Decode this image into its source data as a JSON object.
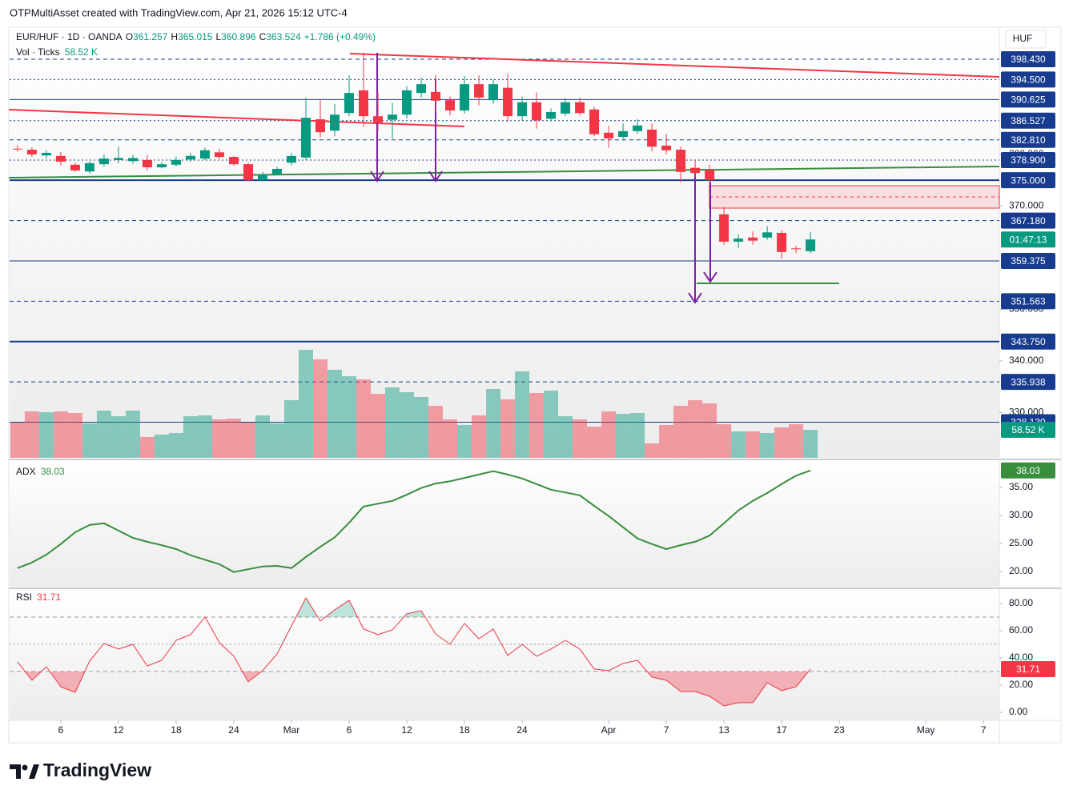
{
  "header": {
    "credit": "OTPMultiAsset created with TradingView.com, Apr 21, 2026 15:12 UTC-4"
  },
  "footer": {
    "brand": "TradingView"
  },
  "chart_data": [
    {
      "type": "candlestick",
      "symbol": "EUR/HUF · 1D · OANDA",
      "ohlc_prefixes": [
        "O",
        "H",
        "L",
        "C"
      ],
      "change_label": "+1.786 (+0.49%)",
      "currency": "HUF",
      "countdown": "01:47:13",
      "up_color": "#089981",
      "down_color": "#f23645",
      "level_color": "#173c8f",
      "open": [
        381.1,
        380.9,
        379.8,
        379.7,
        378.0,
        376.7,
        378.1,
        378.9,
        378.7,
        378.9,
        377.5,
        378.0,
        379.0,
        379.2,
        380.4,
        379.5,
        378.1,
        375.0,
        376.2,
        378.4,
        379.4,
        386.8,
        384.6,
        388.0,
        392.4,
        387.4,
        386.7,
        387.7,
        391.9,
        392.1,
        390.5,
        388.5,
        393.6,
        390.5,
        392.9,
        387.4,
        390.1,
        386.9,
        387.9,
        390.1,
        388.7,
        384.2,
        383.4,
        384.5,
        384.8,
        381.7,
        380.9,
        377.4,
        377.0,
        368.4,
        363.1,
        363.9,
        363.9,
        364.8,
        361.8,
        361.257
      ],
      "high": [
        381.8,
        381.4,
        380.8,
        380.5,
        378.4,
        378.7,
        380.0,
        381.5,
        379.9,
        379.9,
        378.5,
        379.6,
        380.3,
        381.3,
        381.1,
        379.7,
        378.4,
        376.6,
        377.6,
        380.3,
        391.0,
        390.5,
        389.8,
        395.3,
        399.7,
        392.0,
        390.0,
        393.2,
        394.9,
        395.4,
        391.2,
        395.2,
        395.3,
        394.5,
        395.7,
        391.2,
        392.0,
        388.9,
        390.9,
        391.0,
        389.2,
        385.5,
        386.0,
        386.8,
        386.0,
        384.0,
        381.5,
        378.9,
        378.0,
        369.8,
        364.5,
        365.1,
        366.1,
        365.3,
        362.3,
        365.015
      ],
      "low": [
        380.5,
        379.5,
        379.2,
        377.9,
        376.6,
        376.3,
        377.6,
        378.3,
        378.2,
        376.9,
        377.3,
        377.6,
        378.6,
        378.9,
        379.1,
        377.8,
        374.8,
        374.8,
        375.9,
        377.9,
        378.9,
        383.3,
        383.5,
        387.4,
        385.3,
        384.5,
        383.0,
        386.9,
        391.0,
        388.2,
        387.6,
        387.9,
        389.5,
        389.8,
        386.3,
        386.5,
        385.0,
        386.4,
        387.4,
        387.5,
        383.5,
        381.3,
        382.7,
        384.0,
        380.6,
        380.0,
        374.6,
        375.6,
        374.0,
        362.5,
        361.9,
        362.5,
        363.5,
        359.8,
        360.9,
        360.896
      ],
      "close": [
        381.0,
        380.0,
        380.3,
        378.6,
        376.9,
        378.3,
        379.2,
        379.3,
        379.3,
        377.5,
        378.1,
        378.9,
        379.7,
        380.8,
        379.5,
        378.1,
        375.0,
        376.1,
        377.2,
        379.7,
        387.1,
        384.3,
        387.7,
        391.9,
        387.4,
        386.2,
        387.7,
        392.4,
        393.6,
        390.4,
        388.5,
        393.6,
        391.0,
        393.6,
        387.4,
        390.1,
        386.6,
        388.2,
        390.1,
        388.0,
        383.9,
        383.1,
        384.5,
        385.6,
        381.5,
        380.8,
        376.6,
        376.4,
        375.0,
        363.1,
        363.7,
        363.3,
        364.9,
        361.1,
        361.738,
        363.524
      ],
      "volume": {
        "name": "Vol · Ticks",
        "values": [
          73.6,
          97.0,
          95.3,
          97.0,
          93.6,
          71.9,
          98.6,
          86.9,
          98.6,
          43.5,
          48.5,
          51.8,
          86.9,
          88.6,
          80.3,
          81.9,
          73.6,
          88.6,
          71.9,
          120.4,
          225.7,
          205.7,
          183.9,
          170.5,
          163.9,
          133.8,
          147.1,
          137.1,
          127.1,
          108.7,
          80.3,
          68.6,
          88.6,
          143.8,
          122.1,
          180.6,
          135.4,
          140.4,
          86.9,
          80.3,
          65.2,
          97.0,
          92.0,
          93.6,
          30.1,
          68.6,
          108.7,
          120.4,
          113.7,
          70.2,
          55.2,
          55.2,
          51.8,
          63.5,
          70.2,
          58.52
        ],
        "last_label": "58.52 K"
      },
      "ylim": [
        321.24,
        403.7
      ],
      "yticks": [
        {
          "value": 380,
          "label": "380.000"
        },
        {
          "value": 370,
          "label": "370.000"
        },
        {
          "value": 350,
          "label": "350.000"
        },
        {
          "value": 340,
          "label": "340.000"
        },
        {
          "value": 330,
          "label": "330.000"
        }
      ],
      "levels": [
        {
          "value": 398.43,
          "label": "398.430",
          "style": "dashed"
        },
        {
          "value": 394.5,
          "label": "394.500",
          "style": "dotted"
        },
        {
          "value": 390.625,
          "label": "390.625",
          "style": "solid"
        },
        {
          "value": 386.527,
          "label": "386.527",
          "style": "dotted"
        },
        {
          "value": 382.81,
          "label": "382.810",
          "style": "dashed"
        },
        {
          "value": 378.9,
          "label": "378.900",
          "style": "dotted"
        },
        {
          "value": 375,
          "label": "375.000",
          "style": "thick"
        },
        {
          "value": 367.18,
          "label": "367.180",
          "style": "dashed"
        },
        {
          "value": 359.375,
          "label": "359.375",
          "style": "solid"
        },
        {
          "value": 351.563,
          "label": "351.563",
          "style": "dashed"
        },
        {
          "value": 343.75,
          "label": "343.750",
          "style": "thick"
        },
        {
          "value": 335.938,
          "label": "335.938",
          "style": "dashed"
        },
        {
          "value": 328.13,
          "label": "328.130",
          "style": "solid"
        }
      ],
      "xlim": [
        -0.55,
        68.1
      ],
      "xticks": [
        {
          "value": 3,
          "label": "6"
        },
        {
          "value": 7,
          "label": "12"
        },
        {
          "value": 11,
          "label": "18"
        },
        {
          "value": 15,
          "label": "24"
        },
        {
          "value": 19,
          "label": "Mar"
        },
        {
          "value": 23,
          "label": "6"
        },
        {
          "value": 27,
          "label": "12"
        },
        {
          "value": 31,
          "label": "18"
        },
        {
          "value": 35,
          "label": "24"
        },
        {
          "value": 41,
          "label": "Apr"
        },
        {
          "value": 45,
          "label": "7"
        },
        {
          "value": 49,
          "label": "13"
        },
        {
          "value": 53,
          "label": "17"
        },
        {
          "value": 57,
          "label": "23"
        },
        {
          "value": 63,
          "label": "May"
        },
        {
          "value": 67,
          "label": "7"
        }
      ]
    },
    {
      "type": "line",
      "name": "ADX",
      "color": "#388e3c",
      "values": [
        20.6,
        21.6,
        23.0,
        24.9,
        27.0,
        28.3,
        28.6,
        27.3,
        26.0,
        25.3,
        24.7,
        24.0,
        22.9,
        22.1,
        21.3,
        19.9,
        20.4,
        20.9,
        21.0,
        20.6,
        22.6,
        24.4,
        26.1,
        28.7,
        31.6,
        32.1,
        32.6,
        33.7,
        34.9,
        35.7,
        36.1,
        36.7,
        37.3,
        37.9,
        37.3,
        36.6,
        35.6,
        34.6,
        34.1,
        33.6,
        31.7,
        29.9,
        27.9,
        25.9,
        24.9,
        24.0,
        24.7,
        25.3,
        26.4,
        28.6,
        30.9,
        32.6,
        34.0,
        35.6,
        37.1,
        38.03
      ],
      "ylim": [
        17.71,
        39.43
      ],
      "yticks": [
        {
          "value": 35,
          "label": "35.00"
        },
        {
          "value": 30,
          "label": "30.00"
        },
        {
          "value": 25,
          "label": "25.00"
        },
        {
          "value": 20,
          "label": "20.00"
        }
      ]
    },
    {
      "type": "line",
      "name": "RSI",
      "color": "#f23645",
      "values": [
        37.1,
        23.5,
        33.5,
        18.8,
        14.7,
        37.6,
        50.6,
        46.5,
        50.0,
        34.1,
        38.2,
        52.9,
        57.1,
        70.0,
        51.2,
        41.2,
        22.4,
        30.6,
        42.9,
        63.5,
        84.1,
        67.1,
        75.3,
        82.4,
        61.2,
        57.1,
        60.6,
        72.4,
        74.7,
        57.6,
        50.0,
        65.3,
        54.1,
        61.2,
        41.8,
        50.0,
        41.2,
        46.5,
        52.9,
        46.5,
        31.8,
        30.6,
        35.9,
        38.2,
        25.9,
        23.5,
        15.3,
        15.3,
        11.8,
        4.7,
        7.1,
        7.1,
        21.8,
        15.9,
        18.8,
        31.71
      ],
      "bands": [
        70,
        50,
        30
      ],
      "ylim": [
        -5.9,
        88.2
      ],
      "yticks": [
        {
          "value": 80,
          "label": "80.00"
        },
        {
          "value": 60,
          "label": "60.00"
        },
        {
          "value": 40,
          "label": "40.00"
        },
        {
          "value": 20,
          "label": "20.00"
        },
        {
          "value": 0,
          "label": "0.00"
        }
      ]
    }
  ]
}
